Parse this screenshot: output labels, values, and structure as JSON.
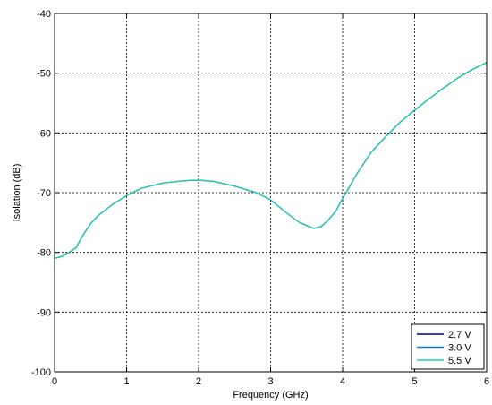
{
  "chart_data": {
    "type": "line",
    "title": "",
    "xlabel": "Frequency (GHz)",
    "ylabel": "Isolation (dB)",
    "xlim": [
      0,
      6
    ],
    "ylim": [
      -100,
      -40
    ],
    "xticks": [
      "0",
      "1",
      "2",
      "3",
      "4",
      "5",
      "6"
    ],
    "yticks": [
      "-100",
      "-90",
      "-80",
      "-70",
      "-60",
      "-50",
      "-40"
    ],
    "grid": true,
    "legend_position": "bottom-right",
    "series": [
      {
        "name": "2.7 V",
        "color": "#00007f",
        "x": [
          0,
          0.1,
          0.2,
          0.3,
          0.4,
          0.5,
          0.6,
          0.8,
          1.0,
          1.2,
          1.5,
          1.8,
          2.0,
          2.2,
          2.5,
          2.8,
          3.0,
          3.2,
          3.4,
          3.6,
          3.7,
          3.8,
          3.9,
          4.0,
          4.2,
          4.4,
          4.6,
          4.8,
          5.0,
          5.2,
          5.4,
          5.6,
          5.8,
          6.0
        ],
        "y": [
          -81.0,
          -80.7,
          -80.0,
          -79.2,
          -77.0,
          -75.2,
          -73.9,
          -72.0,
          -70.5,
          -69.3,
          -68.4,
          -68.0,
          -67.9,
          -68.1,
          -68.9,
          -70.0,
          -71.2,
          -73.2,
          -75.0,
          -76.0,
          -75.7,
          -74.6,
          -73.2,
          -71.0,
          -66.8,
          -63.2,
          -60.6,
          -58.2,
          -56.2,
          -54.3,
          -52.5,
          -50.8,
          -49.4,
          -48.2
        ]
      },
      {
        "name": "3.0 V",
        "color": "#0080c0",
        "x": [
          0,
          0.1,
          0.2,
          0.3,
          0.4,
          0.5,
          0.6,
          0.8,
          1.0,
          1.2,
          1.5,
          1.8,
          2.0,
          2.2,
          2.5,
          2.8,
          3.0,
          3.2,
          3.4,
          3.6,
          3.7,
          3.8,
          3.9,
          4.0,
          4.2,
          4.4,
          4.6,
          4.8,
          5.0,
          5.2,
          5.4,
          5.6,
          5.8,
          6.0
        ],
        "y": [
          -81.0,
          -80.7,
          -80.0,
          -79.2,
          -77.0,
          -75.2,
          -73.9,
          -72.0,
          -70.5,
          -69.3,
          -68.4,
          -68.0,
          -67.9,
          -68.1,
          -68.9,
          -70.0,
          -71.2,
          -73.2,
          -75.0,
          -76.0,
          -75.7,
          -74.6,
          -73.2,
          -71.0,
          -66.8,
          -63.2,
          -60.6,
          -58.2,
          -56.2,
          -54.3,
          -52.5,
          -50.8,
          -49.4,
          -48.2
        ]
      },
      {
        "name": "5.5 V",
        "color": "#20d0a8",
        "x": [
          0,
          0.1,
          0.2,
          0.3,
          0.4,
          0.5,
          0.6,
          0.8,
          1.0,
          1.2,
          1.5,
          1.8,
          2.0,
          2.2,
          2.5,
          2.8,
          3.0,
          3.2,
          3.4,
          3.6,
          3.7,
          3.8,
          3.9,
          4.0,
          4.2,
          4.4,
          4.6,
          4.8,
          5.0,
          5.2,
          5.4,
          5.6,
          5.8,
          6.0
        ],
        "y": [
          -81.0,
          -80.7,
          -80.0,
          -79.2,
          -77.0,
          -75.2,
          -73.9,
          -72.0,
          -70.5,
          -69.3,
          -68.4,
          -68.0,
          -67.9,
          -68.1,
          -68.9,
          -70.0,
          -71.2,
          -73.2,
          -75.0,
          -76.0,
          -75.7,
          -74.6,
          -73.2,
          -71.0,
          -66.8,
          -63.2,
          -60.6,
          -58.2,
          -56.2,
          -54.3,
          -52.5,
          -50.8,
          -49.4,
          -48.2
        ]
      }
    ]
  }
}
